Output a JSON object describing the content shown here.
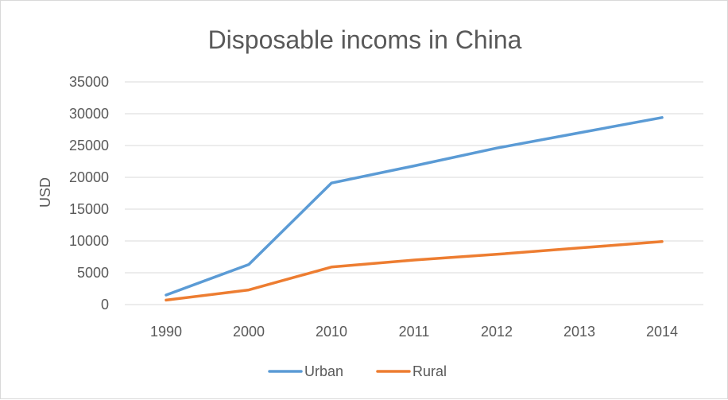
{
  "chart_data": {
    "type": "line",
    "title": "Disposable incoms in China",
    "xlabel": "",
    "ylabel": "USD",
    "categories": [
      "1990",
      "2000",
      "2010",
      "2011",
      "2012",
      "2013",
      "2014"
    ],
    "series": [
      {
        "name": "Urban",
        "color": "#5b9bd5",
        "values": [
          1500,
          6300,
          19100,
          21800,
          24600,
          27000,
          29400
        ]
      },
      {
        "name": "Rural",
        "color": "#ed7d31",
        "values": [
          700,
          2300,
          5900,
          7000,
          7900,
          8900,
          9900
        ]
      }
    ],
    "ylim": [
      0,
      35000
    ],
    "yticks": [
      0,
      5000,
      10000,
      15000,
      20000,
      25000,
      30000,
      35000
    ],
    "grid": true,
    "legend_position": "bottom"
  }
}
